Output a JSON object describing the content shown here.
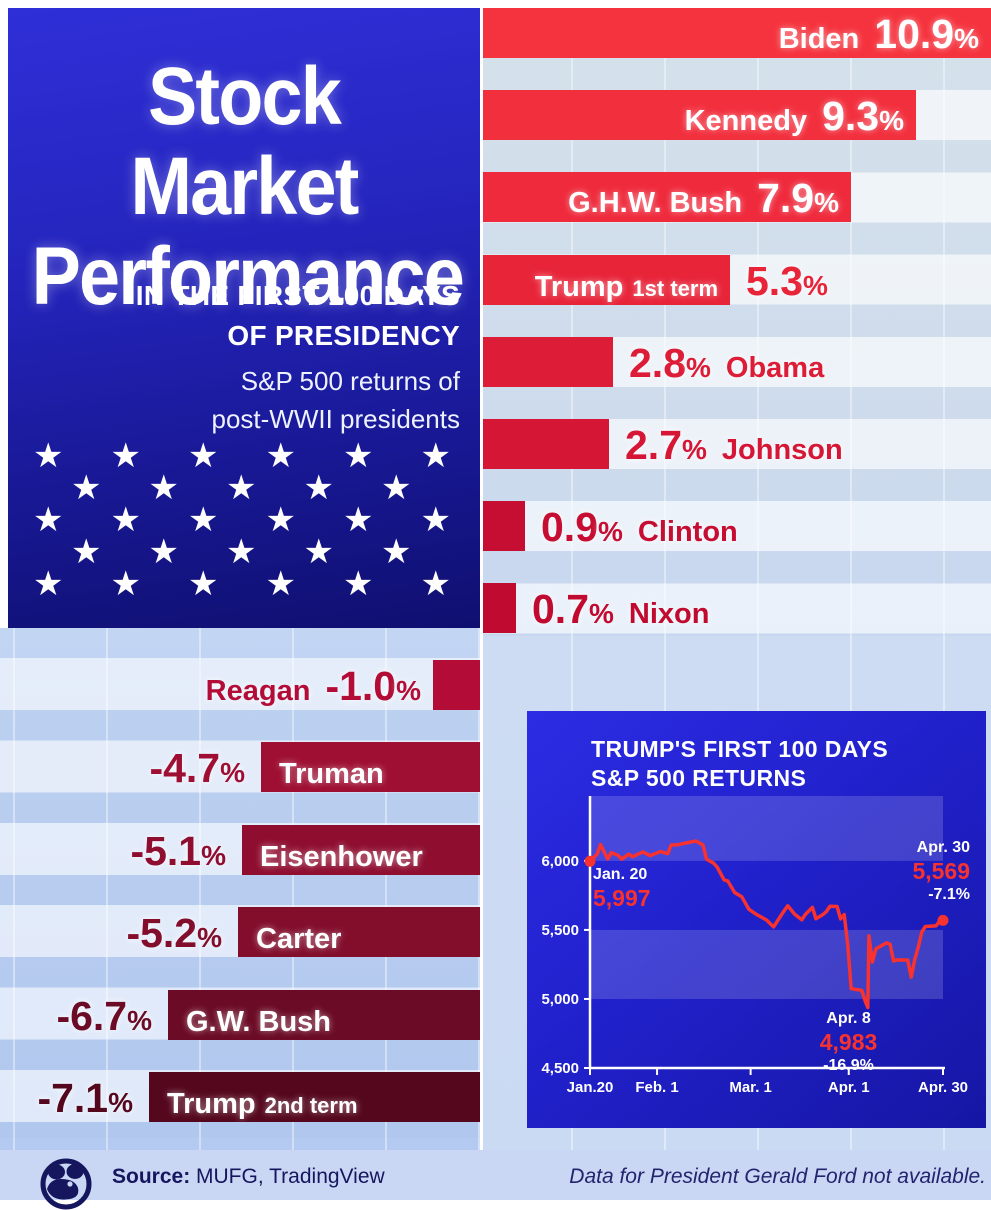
{
  "title_panel": {
    "title_line1": "Stock Market",
    "title_line2": "Performance",
    "subtitle_line1": "IN THE FIRST 100 DAYS",
    "subtitle_line2": "OF PRESIDENCY",
    "description_line1": "S&P 500 returns of",
    "description_line2": "post-WWII presidents",
    "star_rows": [
      6,
      5,
      6,
      5,
      6
    ]
  },
  "chart_data": [
    {
      "type": "bar",
      "title": "S&P 500 returns in the first 100 days of presidency",
      "unit": "%",
      "bars": [
        {
          "name": "Biden",
          "value": 10.9,
          "display": "10.9",
          "color": "#f5333e",
          "layout": "inside"
        },
        {
          "name": "Kennedy",
          "value": 9.3,
          "display": "9.3",
          "color": "#f22f3d",
          "layout": "inside"
        },
        {
          "name": "G.H.W. Bush",
          "value": 7.9,
          "display": "7.9",
          "color": "#ef2a3c",
          "layout": "inside"
        },
        {
          "name": "Trump",
          "suffix": "1st term",
          "value": 5.3,
          "display": "5.3",
          "color": "#e82439",
          "layout": "name-inside"
        },
        {
          "name": "Obama",
          "value": 2.8,
          "display": "2.8",
          "color": "#dd1d37",
          "layout": "outside"
        },
        {
          "name": "Johnson",
          "value": 2.7,
          "display": "2.7",
          "color": "#d51735",
          "layout": "outside"
        },
        {
          "name": "Clinton",
          "value": 0.9,
          "display": "0.9",
          "color": "#c60d32",
          "layout": "outside"
        },
        {
          "name": "Nixon",
          "value": 0.7,
          "display": "0.7",
          "color": "#c00a30",
          "layout": "outside"
        },
        {
          "name": "Reagan",
          "value": -1.0,
          "display": "-1.0",
          "color": "#b30d37",
          "layout": "neg-outside"
        },
        {
          "name": "Truman",
          "value": -4.7,
          "display": "-4.7",
          "color": "#9e0f33",
          "layout": "neg-inside"
        },
        {
          "name": "Eisenhower",
          "value": -5.1,
          "display": "-5.1",
          "color": "#8f0e30",
          "layout": "neg-inside"
        },
        {
          "name": "Carter",
          "value": -5.2,
          "display": "-5.2",
          "color": "#820e2c",
          "layout": "neg-inside"
        },
        {
          "name": "G.W. Bush",
          "value": -6.7,
          "display": "-6.7",
          "color": "#6b0b25",
          "layout": "neg-inside"
        },
        {
          "name": "Trump",
          "suffix": "2nd term",
          "value": -7.1,
          "display": "-7.1",
          "color": "#55081d",
          "layout": "neg-inside"
        }
      ]
    },
    {
      "type": "line",
      "title_line1": "TRUMP'S FIRST 100 DAYS",
      "title_line2": "S&P 500 RETURNS",
      "line_color": "#f8322f",
      "ylim": [
        4500,
        6470
      ],
      "xlim_days": [
        0,
        100
      ],
      "bands": [
        [
          5000,
          5500
        ],
        [
          6000,
          6500
        ]
      ],
      "y_ticks": [
        {
          "label": "6,000",
          "value": 6000
        },
        {
          "label": "5,500",
          "value": 5500
        },
        {
          "label": "5,000",
          "value": 5000
        },
        {
          "label": "4,500",
          "value": 4500
        }
      ],
      "x_ticks": [
        {
          "label": "Jan.20",
          "pos": 0
        },
        {
          "label": "Feb. 1",
          "pos": 0.19
        },
        {
          "label": "Mar. 1",
          "pos": 0.455
        },
        {
          "label": "Apr. 1",
          "pos": 0.733
        },
        {
          "label": "Apr. 30",
          "pos": 1
        }
      ],
      "annotations": [
        {
          "id": "start",
          "date": "Jan. 20",
          "value": "5,997"
        },
        {
          "id": "end",
          "date": "Apr. 30",
          "value": "5,569",
          "pct": "-7.1%"
        },
        {
          "id": "low",
          "date": "Apr. 8",
          "value": "4,983",
          "pct": "-16.9%"
        }
      ],
      "points": [
        [
          0,
          5997
        ],
        [
          2,
          6049
        ],
        [
          3,
          6118
        ],
        [
          5,
          6014
        ],
        [
          6,
          6060
        ],
        [
          8,
          6040
        ],
        [
          9,
          6012
        ],
        [
          11,
          6050
        ],
        [
          12,
          6030
        ],
        [
          15,
          6065
        ],
        [
          17,
          6038
        ],
        [
          20,
          6068
        ],
        [
          22,
          6052
        ],
        [
          23,
          6115
        ],
        [
          25,
          6117
        ],
        [
          27,
          6129
        ],
        [
          30,
          6144
        ],
        [
          32,
          6115
        ],
        [
          33,
          6013
        ],
        [
          35,
          5983
        ],
        [
          36,
          5956
        ],
        [
          38,
          5862
        ],
        [
          39,
          5855
        ],
        [
          41,
          5770
        ],
        [
          43,
          5740
        ],
        [
          45,
          5650
        ],
        [
          47,
          5615
        ],
        [
          50,
          5572
        ],
        [
          52,
          5522
        ],
        [
          54,
          5600
        ],
        [
          55,
          5638
        ],
        [
          56,
          5675
        ],
        [
          58,
          5614
        ],
        [
          60,
          5573
        ],
        [
          61,
          5612
        ],
        [
          63,
          5663
        ],
        [
          64,
          5581
        ],
        [
          66,
          5612
        ],
        [
          67,
          5634
        ],
        [
          68,
          5671
        ],
        [
          70,
          5670
        ],
        [
          71,
          5580
        ],
        [
          72,
          5611
        ],
        [
          73,
          5396
        ],
        [
          74,
          5074
        ],
        [
          77,
          5062
        ],
        [
          78,
          4983
        ],
        [
          78.7,
          4938
        ],
        [
          79,
          5457
        ],
        [
          80,
          5268
        ],
        [
          81,
          5363
        ],
        [
          84,
          5406
        ],
        [
          85,
          5397
        ],
        [
          86,
          5276
        ],
        [
          87,
          5283
        ],
        [
          90,
          5282
        ],
        [
          91,
          5158
        ],
        [
          92,
          5288
        ],
        [
          93,
          5376
        ],
        [
          94,
          5485
        ],
        [
          95,
          5525
        ],
        [
          98,
          5529
        ],
        [
          99,
          5561
        ],
        [
          100,
          5569
        ]
      ]
    }
  ],
  "footer": {
    "source_label": "Source:",
    "source_value": " MUFG, TradingView",
    "note": "Data for President Gerald Ford not available.",
    "logo": "voronoi-logo",
    "accent_navy": "#16165e"
  }
}
